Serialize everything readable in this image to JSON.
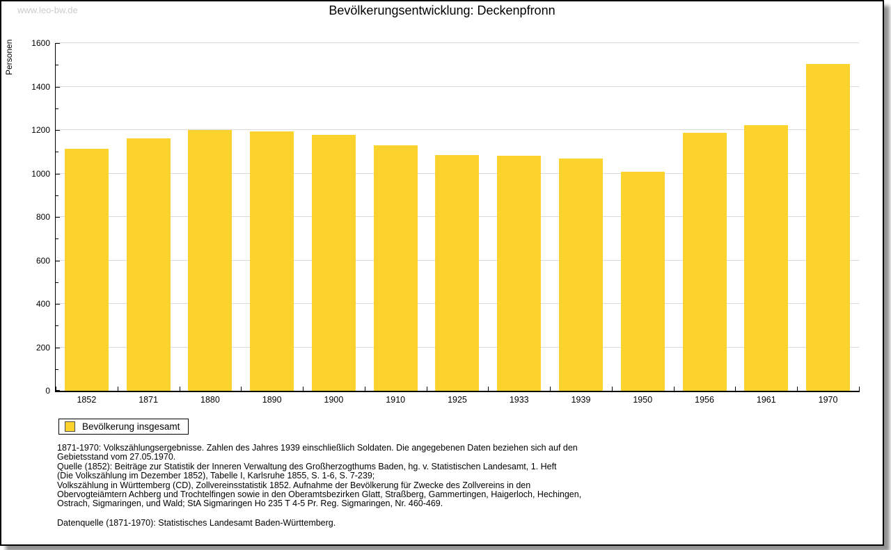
{
  "watermark": "www.leo-bw.de",
  "title": "Bevölkerungsentwicklung: Deckenpfronn",
  "chart_data": {
    "type": "bar",
    "title": "Bevölkerungsentwicklung: Deckenpfronn",
    "xlabel": "",
    "ylabel": "Personen",
    "ylim": [
      0,
      1600
    ],
    "yticks": [
      0,
      200,
      400,
      600,
      800,
      1000,
      1200,
      1400,
      1600
    ],
    "minor_tick_step": 100,
    "grid": true,
    "bar_color": "#FCD32D",
    "gridline_color": "#d9d9d9",
    "legend_position": "bottom-left",
    "categories": [
      "1852",
      "1871",
      "1880",
      "1890",
      "1900",
      "1910",
      "1925",
      "1933",
      "1939",
      "1950",
      "1956",
      "1961",
      "1970"
    ],
    "series": [
      {
        "name": "Bevölkerung insgesamt",
        "values": [
          1113,
          1161,
          1200,
          1193,
          1178,
          1131,
          1085,
          1082,
          1069,
          1008,
          1188,
          1223,
          1505
        ]
      }
    ]
  },
  "legend": {
    "label": "Bevölkerung insgesamt",
    "swatch_color": "#FCD32D"
  },
  "footer": {
    "lines": [
      "1871-1970: Volkszählungsergebnisse. Zahlen des Jahres 1939 einschließlich Soldaten. Die angegebenen Daten beziehen sich auf den",
      "Gebietsstand vom 27.05.1970.",
      "Quelle (1852): Beiträge zur Statistik der Inneren Verwaltung des Großherzogthums Baden, hg. v. Statistischen Landesamt, 1. Heft",
      "(Die Volkszählung im Dezember 1852), Tabelle I, Karlsruhe 1855, S. 1-6, S. 7-239;",
      "Volkszählung in Württemberg (CD), Zollvereinsstatistik 1852. Aufnahme der Bevölkerung für Zwecke des Zollvereins in den",
      "Obervogteiämtern Achberg und Trochtelfingen sowie in den Oberamtsbezirken Glatt, Straßberg, Gammertingen, Haigerloch, Hechingen,",
      "Ostrach, Sigmaringen, und Wald; StA Sigmaringen Ho 235 T 4-5 Pr. Reg. Sigmaringen, Nr. 460-469."
    ],
    "datasource": "Datenquelle (1871-1970): Statistisches Landesamt Baden-Württemberg."
  }
}
